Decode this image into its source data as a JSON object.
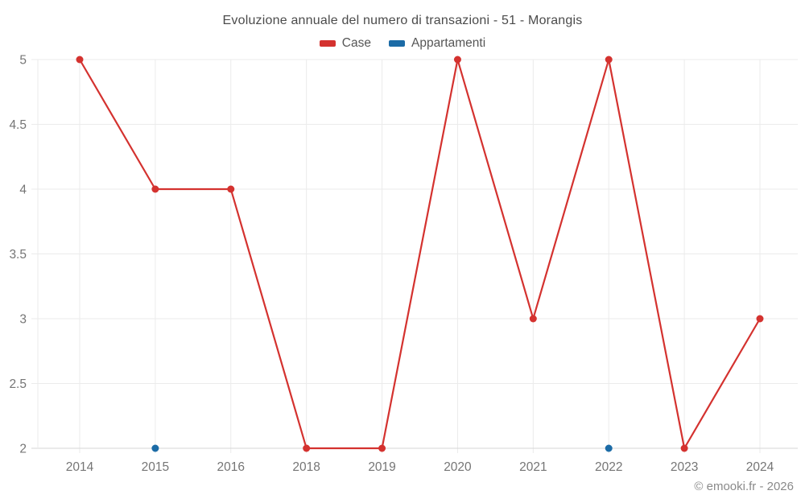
{
  "chart_data": {
    "type": "line",
    "title": "Evoluzione annuale del numero di transazioni - 51 - Morangis",
    "categories": [
      "2014",
      "2015",
      "2016",
      "2018",
      "2019",
      "2020",
      "2021",
      "2022",
      "2023",
      "2024"
    ],
    "series": [
      {
        "name": "Case",
        "color": "#d4322f",
        "values": [
          5,
          4,
          4,
          2,
          2,
          5,
          3,
          5,
          2,
          3
        ]
      },
      {
        "name": "Appartamenti",
        "color": "#1b6ba6",
        "values": [
          null,
          2,
          null,
          null,
          null,
          null,
          null,
          2,
          null,
          null
        ]
      }
    ],
    "xlabel": "",
    "ylabel": "",
    "ylim": [
      2,
      5
    ],
    "yticks": [
      5,
      4.5,
      4,
      3.5,
      3,
      2.5,
      2
    ],
    "grid": true,
    "legend_position": "top"
  },
  "footer": {
    "copyright": "© emooki.fr - 2026"
  }
}
